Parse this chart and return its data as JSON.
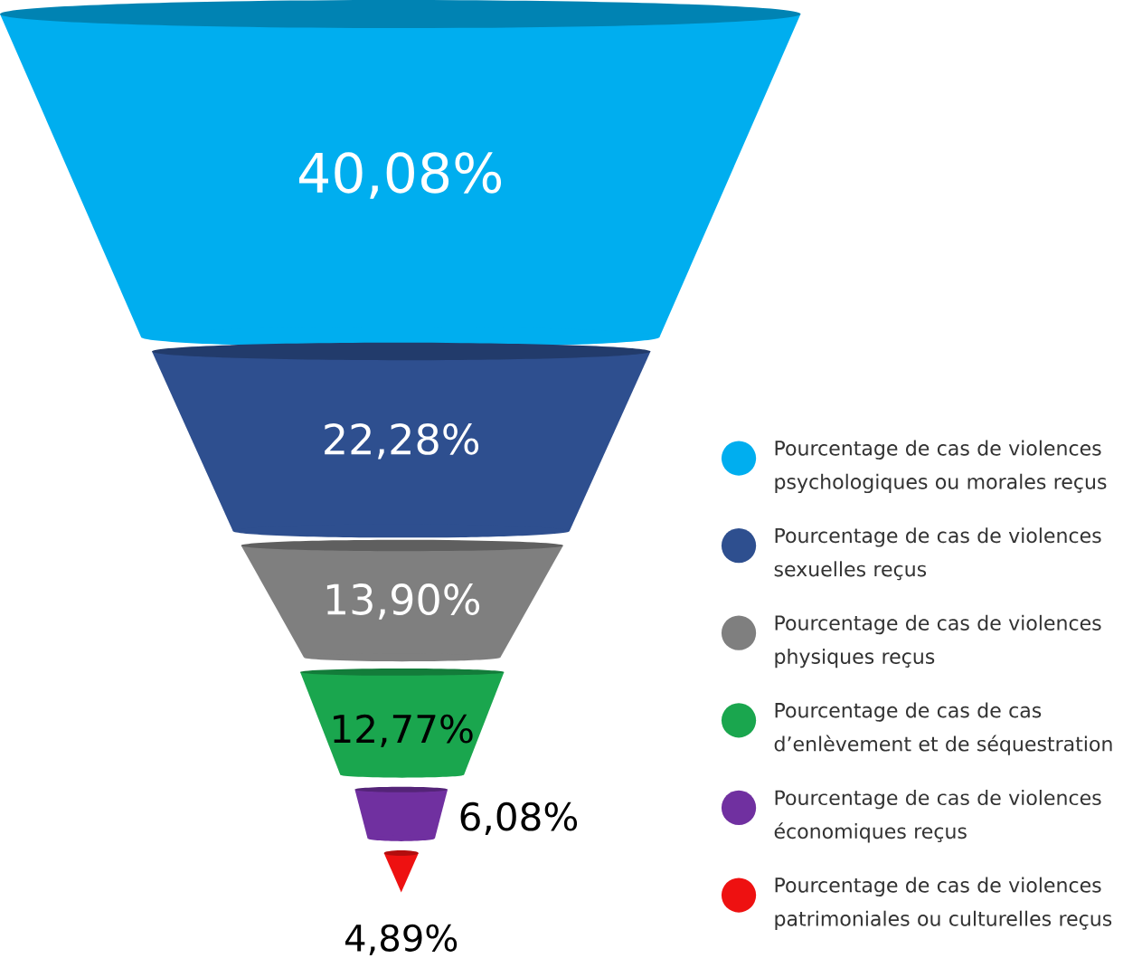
{
  "chart_data": {
    "type": "other",
    "categories": [
      "Pourcentage de cas de violences psychologiques ou morales reçus",
      "Pourcentage de cas de violences sexuelles reçus",
      "Pourcentage de cas de violences physiques reçus",
      "Pourcentage de cas de cas d’enlèvement et de séquestration",
      "Pourcentage de cas de violences économiques reçus",
      "Pourcentage de cas de violences patrimoniales ou culturelles reçus"
    ],
    "values": [
      40.08,
      22.28,
      13.9,
      12.77,
      6.08,
      4.89
    ],
    "value_labels": [
      "40,08%",
      "22,28%",
      "13,90%",
      "12,77%",
      "6,08%",
      "4,89%"
    ],
    "colors": [
      "#00aeef",
      "#2e4f8f",
      "#7f7f7f",
      "#1aa64e",
      "#7030a0",
      "#ee1111"
    ]
  }
}
